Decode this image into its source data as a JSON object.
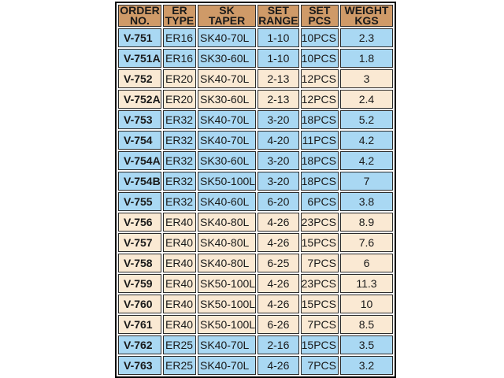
{
  "colors": {
    "header_bg": "#CF9A68",
    "row_blue": "#A9D8F3",
    "row_cream": "#FAE9D3",
    "order_col_bg": "#F8F1E2",
    "cell_border": "#2B2B2B",
    "outer_border": "#000000",
    "gap_bg": "#FFFFFF",
    "text_color": "#1A1A1A"
  },
  "table": {
    "columns": [
      {
        "id": "order_no",
        "label": "ORDER\nNO."
      },
      {
        "id": "er_type",
        "label": "ER\nTYPE"
      },
      {
        "id": "sk_taper",
        "label": "SK\nTAPER"
      },
      {
        "id": "set_range",
        "label": "SET\nRANGE"
      },
      {
        "id": "set_pcs",
        "label": "SET\nPCS"
      },
      {
        "id": "weight_kgs",
        "label": "WEIGHT\nKGS"
      }
    ],
    "rows": [
      {
        "order_no": "V-751",
        "er_type": "ER16",
        "sk_taper": "SK40-70L",
        "set_range": "1-10",
        "set_pcs": "10PCS",
        "weight_kgs": "2.3",
        "tone": "blue"
      },
      {
        "order_no": "V-751A",
        "er_type": "ER16",
        "sk_taper": "SK30-60L",
        "set_range": "1-10",
        "set_pcs": "10PCS",
        "weight_kgs": "1.8",
        "tone": "blue"
      },
      {
        "order_no": "V-752",
        "er_type": "ER20",
        "sk_taper": "SK40-70L",
        "set_range": "2-13",
        "set_pcs": "12PCS",
        "weight_kgs": "3",
        "tone": "cream"
      },
      {
        "order_no": "V-752A",
        "er_type": "ER20",
        "sk_taper": "SK30-60L",
        "set_range": "2-13",
        "set_pcs": "12PCS",
        "weight_kgs": "2.4",
        "tone": "cream"
      },
      {
        "order_no": "V-753",
        "er_type": "ER32",
        "sk_taper": "SK40-70L",
        "set_range": "3-20",
        "set_pcs": "18PCS",
        "weight_kgs": "5.2",
        "tone": "blue"
      },
      {
        "order_no": "V-754",
        "er_type": "ER32",
        "sk_taper": "SK40-70L",
        "set_range": "4-20",
        "set_pcs": "11PCS",
        "weight_kgs": "4.2",
        "tone": "blue"
      },
      {
        "order_no": "V-754A",
        "er_type": "ER32",
        "sk_taper": "SK30-60L",
        "set_range": "3-20",
        "set_pcs": "18PCS",
        "weight_kgs": "4.2",
        "tone": "blue"
      },
      {
        "order_no": "V-754B",
        "er_type": "ER32",
        "sk_taper": "SK50-100L",
        "set_range": "3-20",
        "set_pcs": "18PCS",
        "weight_kgs": "7",
        "tone": "blue"
      },
      {
        "order_no": "V-755",
        "er_type": "ER32",
        "sk_taper": "SK40-60L",
        "set_range": "6-20",
        "set_pcs": "6PCS",
        "weight_kgs": "3.8",
        "tone": "blue"
      },
      {
        "order_no": "V-756",
        "er_type": "ER40",
        "sk_taper": "SK40-80L",
        "set_range": "4-26",
        "set_pcs": "23PCS",
        "weight_kgs": "8.9",
        "tone": "cream"
      },
      {
        "order_no": "V-757",
        "er_type": "ER40",
        "sk_taper": "SK40-80L",
        "set_range": "4-26",
        "set_pcs": "15PCS",
        "weight_kgs": "7.6",
        "tone": "cream"
      },
      {
        "order_no": "V-758",
        "er_type": "ER40",
        "sk_taper": "SK40-80L",
        "set_range": "6-25",
        "set_pcs": "7PCS",
        "weight_kgs": "6",
        "tone": "cream"
      },
      {
        "order_no": "V-759",
        "er_type": "ER40",
        "sk_taper": "SK50-100L",
        "set_range": "4-26",
        "set_pcs": "23PCS",
        "weight_kgs": "11.3",
        "tone": "cream"
      },
      {
        "order_no": "V-760",
        "er_type": "ER40",
        "sk_taper": "SK50-100L",
        "set_range": "4-26",
        "set_pcs": "15PCS",
        "weight_kgs": "10",
        "tone": "cream"
      },
      {
        "order_no": "V-761",
        "er_type": "ER40",
        "sk_taper": "SK50-100L",
        "set_range": "6-26",
        "set_pcs": "7PCS",
        "weight_kgs": "8.5",
        "tone": "cream"
      },
      {
        "order_no": "V-762",
        "er_type": "ER25",
        "sk_taper": "SK40-70L",
        "set_range": "2-16",
        "set_pcs": "15PCS",
        "weight_kgs": "3.5",
        "tone": "blue"
      },
      {
        "order_no": "V-763",
        "er_type": "ER25",
        "sk_taper": "SK40-70L",
        "set_range": "4-26",
        "set_pcs": "7PCS",
        "weight_kgs": "3.2",
        "tone": "blue"
      }
    ]
  }
}
